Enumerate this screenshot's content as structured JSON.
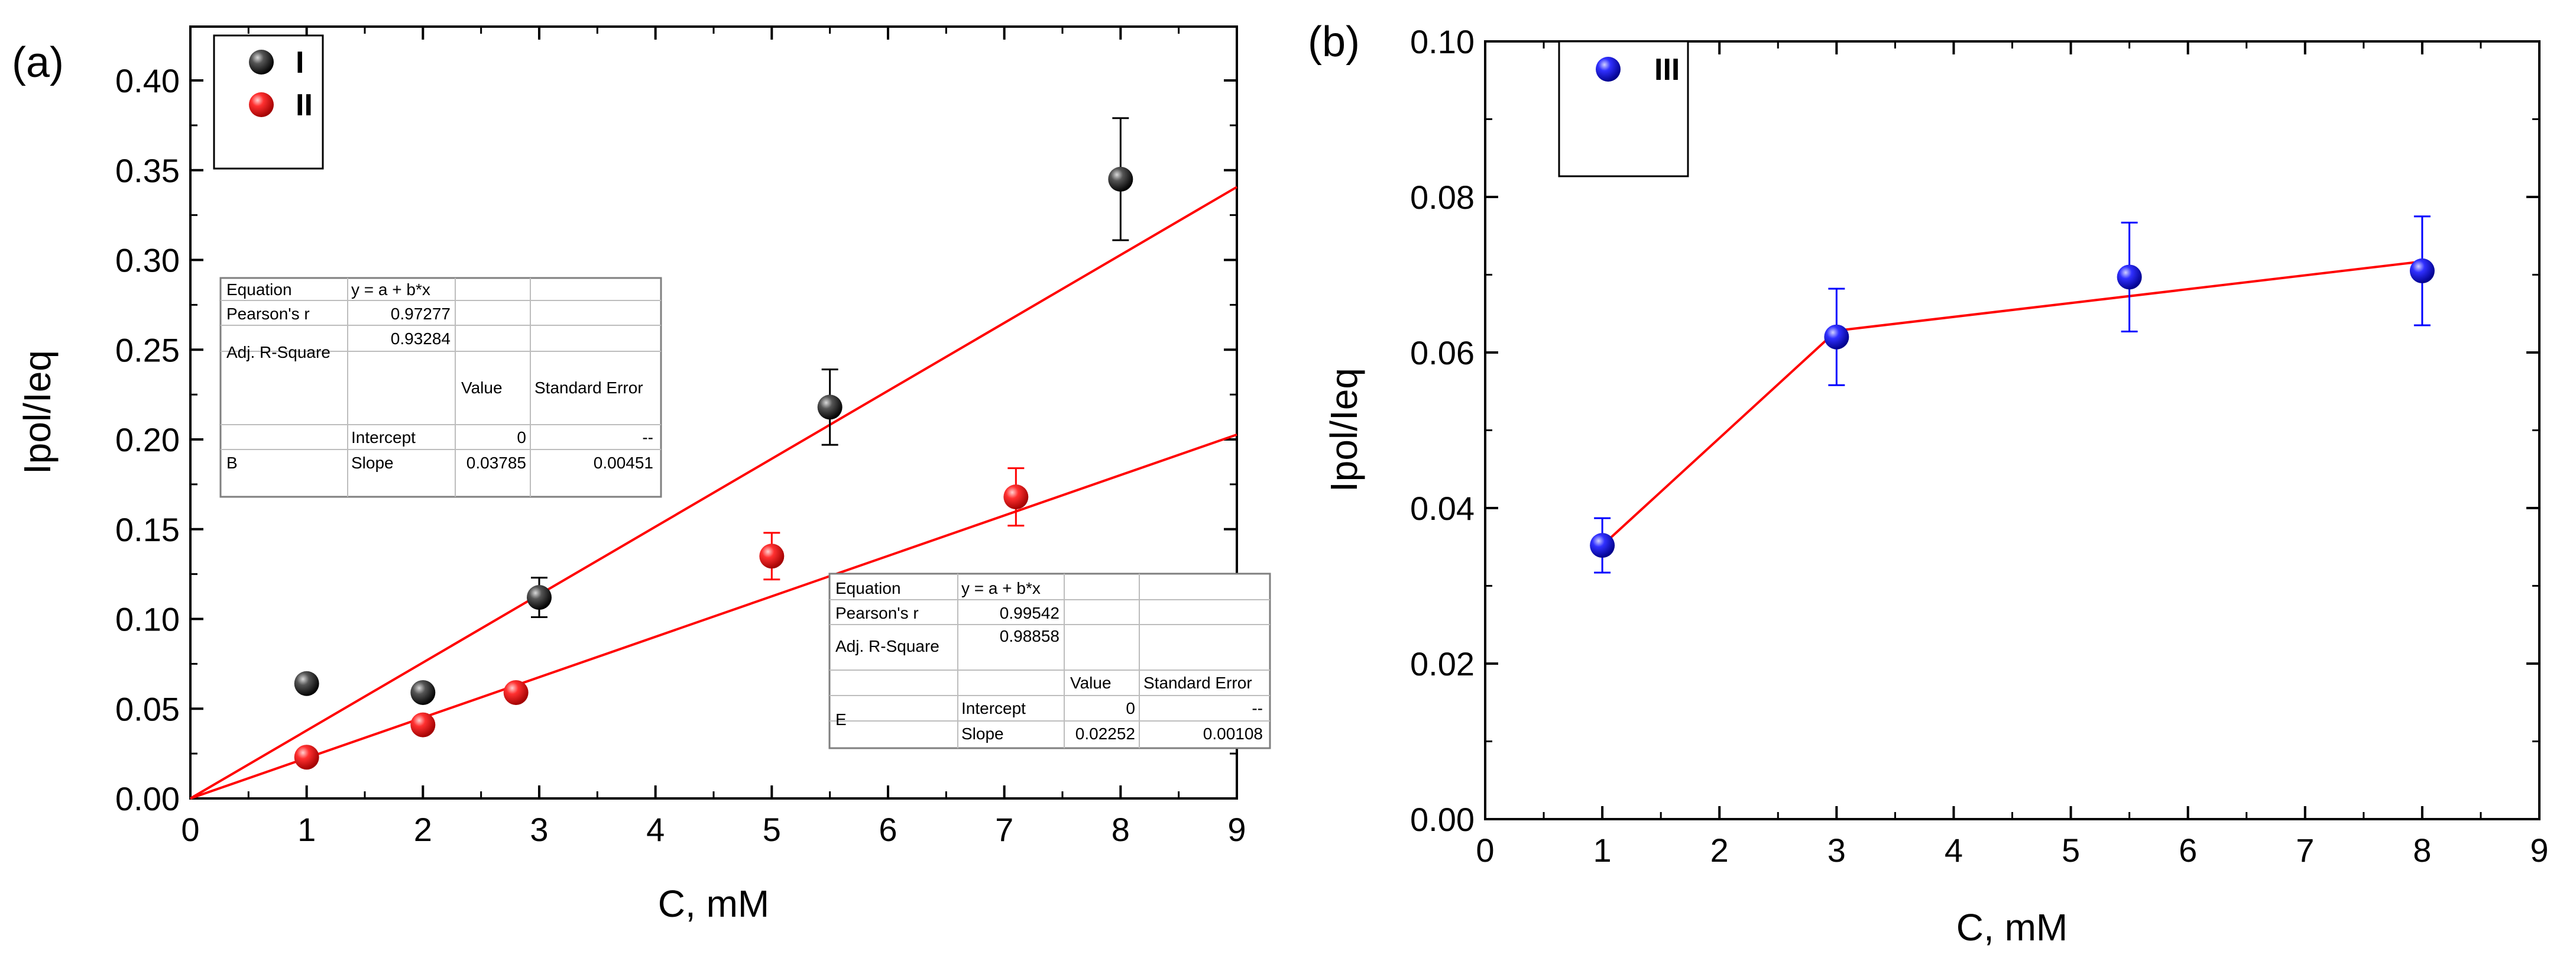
{
  "chart_data": [
    {
      "panel_label": "(a)",
      "type": "scatter",
      "xlabel": "C, mM",
      "ylabel": "Ipol/Ieq",
      "xlim": [
        0,
        9
      ],
      "ylim": [
        0,
        0.43
      ],
      "xticks": [
        0,
        1,
        2,
        3,
        4,
        5,
        6,
        7,
        8,
        9
      ],
      "yticks": [
        "0.00",
        "0.05",
        "0.10",
        "0.15",
        "0.20",
        "0.25",
        "0.30",
        "0.35",
        "0.40"
      ],
      "legend": {
        "placement": "top-left",
        "entries": [
          {
            "label": "I",
            "color": "#000000"
          },
          {
            "label": "II",
            "color": "#ff0000"
          }
        ]
      },
      "series": [
        {
          "name": "I",
          "color": "#000000",
          "marker_color": "#000000",
          "x": [
            1,
            2,
            3,
            5.5,
            8
          ],
          "y": [
            0.064,
            0.059,
            0.112,
            0.218,
            0.345
          ],
          "err": [
            0.003,
            0.003,
            0.011,
            0.021,
            0.034
          ]
        },
        {
          "name": "II",
          "color": "#ff0000",
          "marker_color": "#ff0000",
          "x": [
            1,
            2,
            2.8,
            5,
            7.1
          ],
          "y": [
            0.023,
            0.041,
            0.059,
            0.135,
            0.168
          ],
          "err": [
            0.002,
            0.003,
            0.003,
            0.013,
            0.016
          ]
        }
      ],
      "fits": [
        {
          "series": "I",
          "color": "#ff0000",
          "intercept": 0,
          "slope": 0.03785,
          "x_range": [
            0,
            9
          ]
        },
        {
          "series": "II",
          "color": "#ff0000",
          "intercept": 0,
          "slope": 0.02252,
          "x_range": [
            0,
            9
          ]
        }
      ],
      "fit_tables": [
        {
          "placement": "upper-left",
          "rows": [
            [
              "Equation",
              "y = a + b*x",
              "",
              ""
            ],
            [
              "Pearson's r",
              "0.97277",
              "",
              ""
            ],
            [
              "Adj. R-Square",
              "0.93284",
              "",
              ""
            ],
            [
              "",
              "",
              "Value",
              "Standard Error"
            ],
            [
              "",
              "Intercept",
              "0",
              "--"
            ],
            [
              "B",
              "Slope",
              "0.03785",
              "0.00451"
            ]
          ]
        },
        {
          "placement": "lower-right",
          "rows": [
            [
              "Equation",
              "y = a + b*x",
              "",
              ""
            ],
            [
              "Pearson's r",
              "0.99542",
              "",
              ""
            ],
            [
              "Adj. R-Square",
              "0.98858",
              "",
              ""
            ],
            [
              "",
              "",
              "Value",
              "Standard Error"
            ],
            [
              "",
              "Intercept",
              "0",
              "--"
            ],
            [
              "E",
              "Slope",
              "0.02252",
              "0.00108"
            ]
          ]
        }
      ]
    },
    {
      "panel_label": "(b)",
      "type": "line",
      "xlabel": "C, mM",
      "ylabel": "Ipol/Ieq",
      "xlim": [
        0,
        9
      ],
      "ylim": [
        0,
        0.1
      ],
      "xticks": [
        0,
        1,
        2,
        3,
        4,
        5,
        6,
        7,
        8,
        9
      ],
      "yticks": [
        "0.00",
        "0.02",
        "0.04",
        "0.06",
        "0.08",
        "0.10"
      ],
      "legend": {
        "placement": "top-left",
        "entries": [
          {
            "label": "III",
            "color": "#0000ff"
          }
        ]
      },
      "series": [
        {
          "name": "III",
          "color": "#ff0000",
          "marker_color": "#0000ff",
          "x": [
            1,
            3,
            5.5,
            8
          ],
          "y": [
            0.0352,
            0.062,
            0.0697,
            0.0705
          ],
          "err": [
            0.0035,
            0.0062,
            0.007,
            0.007
          ]
        }
      ],
      "fit_line": {
        "color": "#ff0000",
        "x": [
          1,
          3,
          8
        ],
        "y": [
          0.0352,
          0.0628,
          0.0717
        ]
      }
    }
  ]
}
